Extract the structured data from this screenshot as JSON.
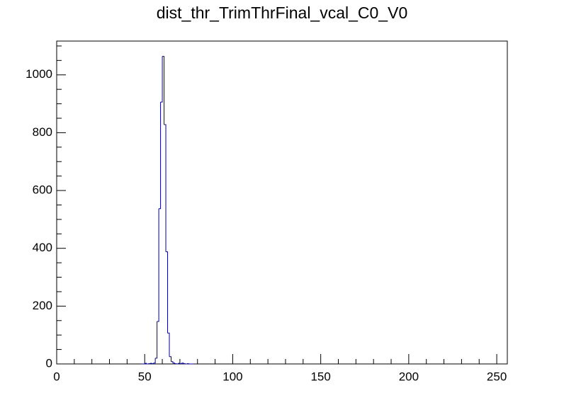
{
  "chart_data": {
    "type": "histogram",
    "title": "dist_thr_TrimThrFinal_vcal_C0_V0",
    "bins": [
      48,
      49,
      50,
      51,
      52,
      53,
      54,
      55,
      56,
      57,
      58,
      59,
      60,
      61,
      62,
      63,
      64,
      65,
      66,
      67,
      68,
      69,
      70,
      71,
      72,
      73,
      74,
      75,
      76,
      77,
      78
    ],
    "values": [
      0,
      0,
      2,
      0,
      1,
      2,
      1,
      3,
      20,
      147,
      537,
      906,
      1064,
      828,
      388,
      107,
      25,
      8,
      3,
      1,
      0,
      2,
      1,
      3,
      1,
      0,
      1,
      0,
      0,
      0
    ],
    "color": "#000099",
    "xlim": [
      0,
      256
    ],
    "xticks": [
      0,
      50,
      100,
      150,
      200,
      250
    ],
    "xminorticks": [
      10,
      20,
      30,
      40,
      60,
      70,
      80,
      90,
      110,
      120,
      130,
      140,
      160,
      170,
      180,
      190,
      210,
      220,
      230,
      240
    ],
    "ylim": [
      0,
      1117
    ],
    "yticks": [
      0,
      200,
      400,
      600,
      800,
      1000
    ],
    "yminorticks": [
      50,
      100,
      150,
      250,
      300,
      350,
      450,
      500,
      550,
      650,
      700,
      750,
      850,
      900,
      950,
      1050,
      1100
    ],
    "grid": false
  }
}
